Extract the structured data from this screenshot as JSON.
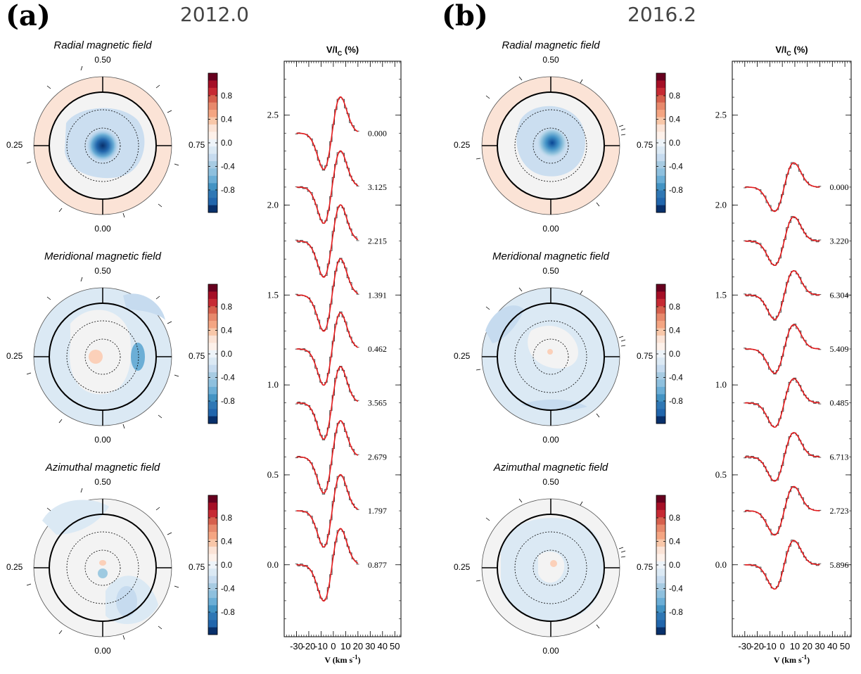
{
  "panels": [
    {
      "label": "(a)",
      "epoch": "2012.0",
      "maps": [
        {
          "title": "Radial magnetic field",
          "top": "0.50",
          "left": "0.25",
          "right": "0.75",
          "bottom": "0.00"
        },
        {
          "title": "Meridional magnetic field",
          "top": "0.50",
          "left": "0.25",
          "right": "0.75",
          "bottom": "0.00"
        },
        {
          "title": "Azimuthal magnetic field",
          "top": "0.50",
          "left": "0.25",
          "right": "0.75",
          "bottom": "0.00"
        }
      ],
      "colorbar_ticks": [
        "0.8",
        "0.4",
        "0.0",
        "-0.4",
        "-0.8"
      ]
    },
    {
      "label": "(b)",
      "epoch": "2016.2",
      "maps": [
        {
          "title": "Radial magnetic field",
          "top": "0.50",
          "left": "0.25",
          "right": "0.75",
          "bottom": "0.00"
        },
        {
          "title": "Meridional magnetic field",
          "top": "0.50",
          "left": "0.25",
          "right": "0.75",
          "bottom": "0.00"
        },
        {
          "title": "Azimuthal magnetic field",
          "top": "0.50",
          "left": "0.25",
          "right": "0.75",
          "bottom": "0.00"
        }
      ],
      "colorbar_ticks": [
        "0.8",
        "0.4",
        "0.0",
        "-0.4",
        "-0.8"
      ]
    }
  ],
  "colors": {
    "model": "#e41a1c",
    "observed": "#333333",
    "positive_weak": "#fbe3d6",
    "negative_weak": "#dbe9f4",
    "negative_strong": "#2166ac"
  },
  "chart_data": [
    {
      "type": "line",
      "title": "V/I_C (%)",
      "title_main": "V/I",
      "title_sub": "C",
      "title_tail": " (%)",
      "xlabel_main": "V (km s",
      "xlabel_sup": "-1",
      "xlabel_tail": ")",
      "xlim": [
        -40,
        55
      ],
      "ylim": [
        -0.4,
        2.8
      ],
      "x_ticks": [
        "-30",
        "-20",
        "-10",
        "0",
        "10",
        "20",
        "30",
        "40",
        "50"
      ],
      "y_ticks": [
        "0.0",
        "0.5",
        "1.0",
        "1.5",
        "2.0",
        "2.5"
      ],
      "profile_x_range": [
        -30,
        20
      ],
      "profile": {
        "min_x": -5,
        "min_y": -0.3,
        "max_x": 3,
        "max_y": 0.3,
        "end_y": 0.0
      },
      "series": [
        {
          "name": "0.000",
          "offset": 2.4
        },
        {
          "name": "3.125",
          "offset": 2.1
        },
        {
          "name": "2.215",
          "offset": 1.8
        },
        {
          "name": "1.391",
          "offset": 1.5
        },
        {
          "name": "0.462",
          "offset": 1.2
        },
        {
          "name": "3.565",
          "offset": 0.9
        },
        {
          "name": "2.679",
          "offset": 0.6
        },
        {
          "name": "1.797",
          "offset": 0.3
        },
        {
          "name": "0.877",
          "offset": 0.0
        }
      ]
    },
    {
      "type": "line",
      "title": "V/I_C (%)",
      "title_main": "V/I",
      "title_sub": "C",
      "title_tail": " (%)",
      "xlabel_main": "V (km s",
      "xlabel_sup": "-1",
      "xlabel_tail": ")",
      "xlim": [
        -40,
        55
      ],
      "ylim": [
        -0.4,
        2.8
      ],
      "x_ticks": [
        "-30",
        "-20",
        "-10",
        "0",
        "10",
        "20",
        "30",
        "40",
        "50"
      ],
      "y_ticks": [
        "0.0",
        "0.5",
        "1.0",
        "1.5",
        "2.0",
        "2.5"
      ],
      "profile_x_range": [
        -30,
        30
      ],
      "profile": {
        "min_x": -5,
        "min_y": -0.15,
        "max_x": 8,
        "max_y": 0.15,
        "end_y": 0.0
      },
      "series": [
        {
          "name": "0.000",
          "offset": 2.1
        },
        {
          "name": "3.220",
          "offset": 1.8
        },
        {
          "name": "6.304",
          "offset": 1.5
        },
        {
          "name": "5.409",
          "offset": 1.2
        },
        {
          "name": "0.485",
          "offset": 0.9
        },
        {
          "name": "6.713",
          "offset": 0.6
        },
        {
          "name": "2.723",
          "offset": 0.3
        },
        {
          "name": "5.896",
          "offset": 0.0
        }
      ]
    }
  ]
}
